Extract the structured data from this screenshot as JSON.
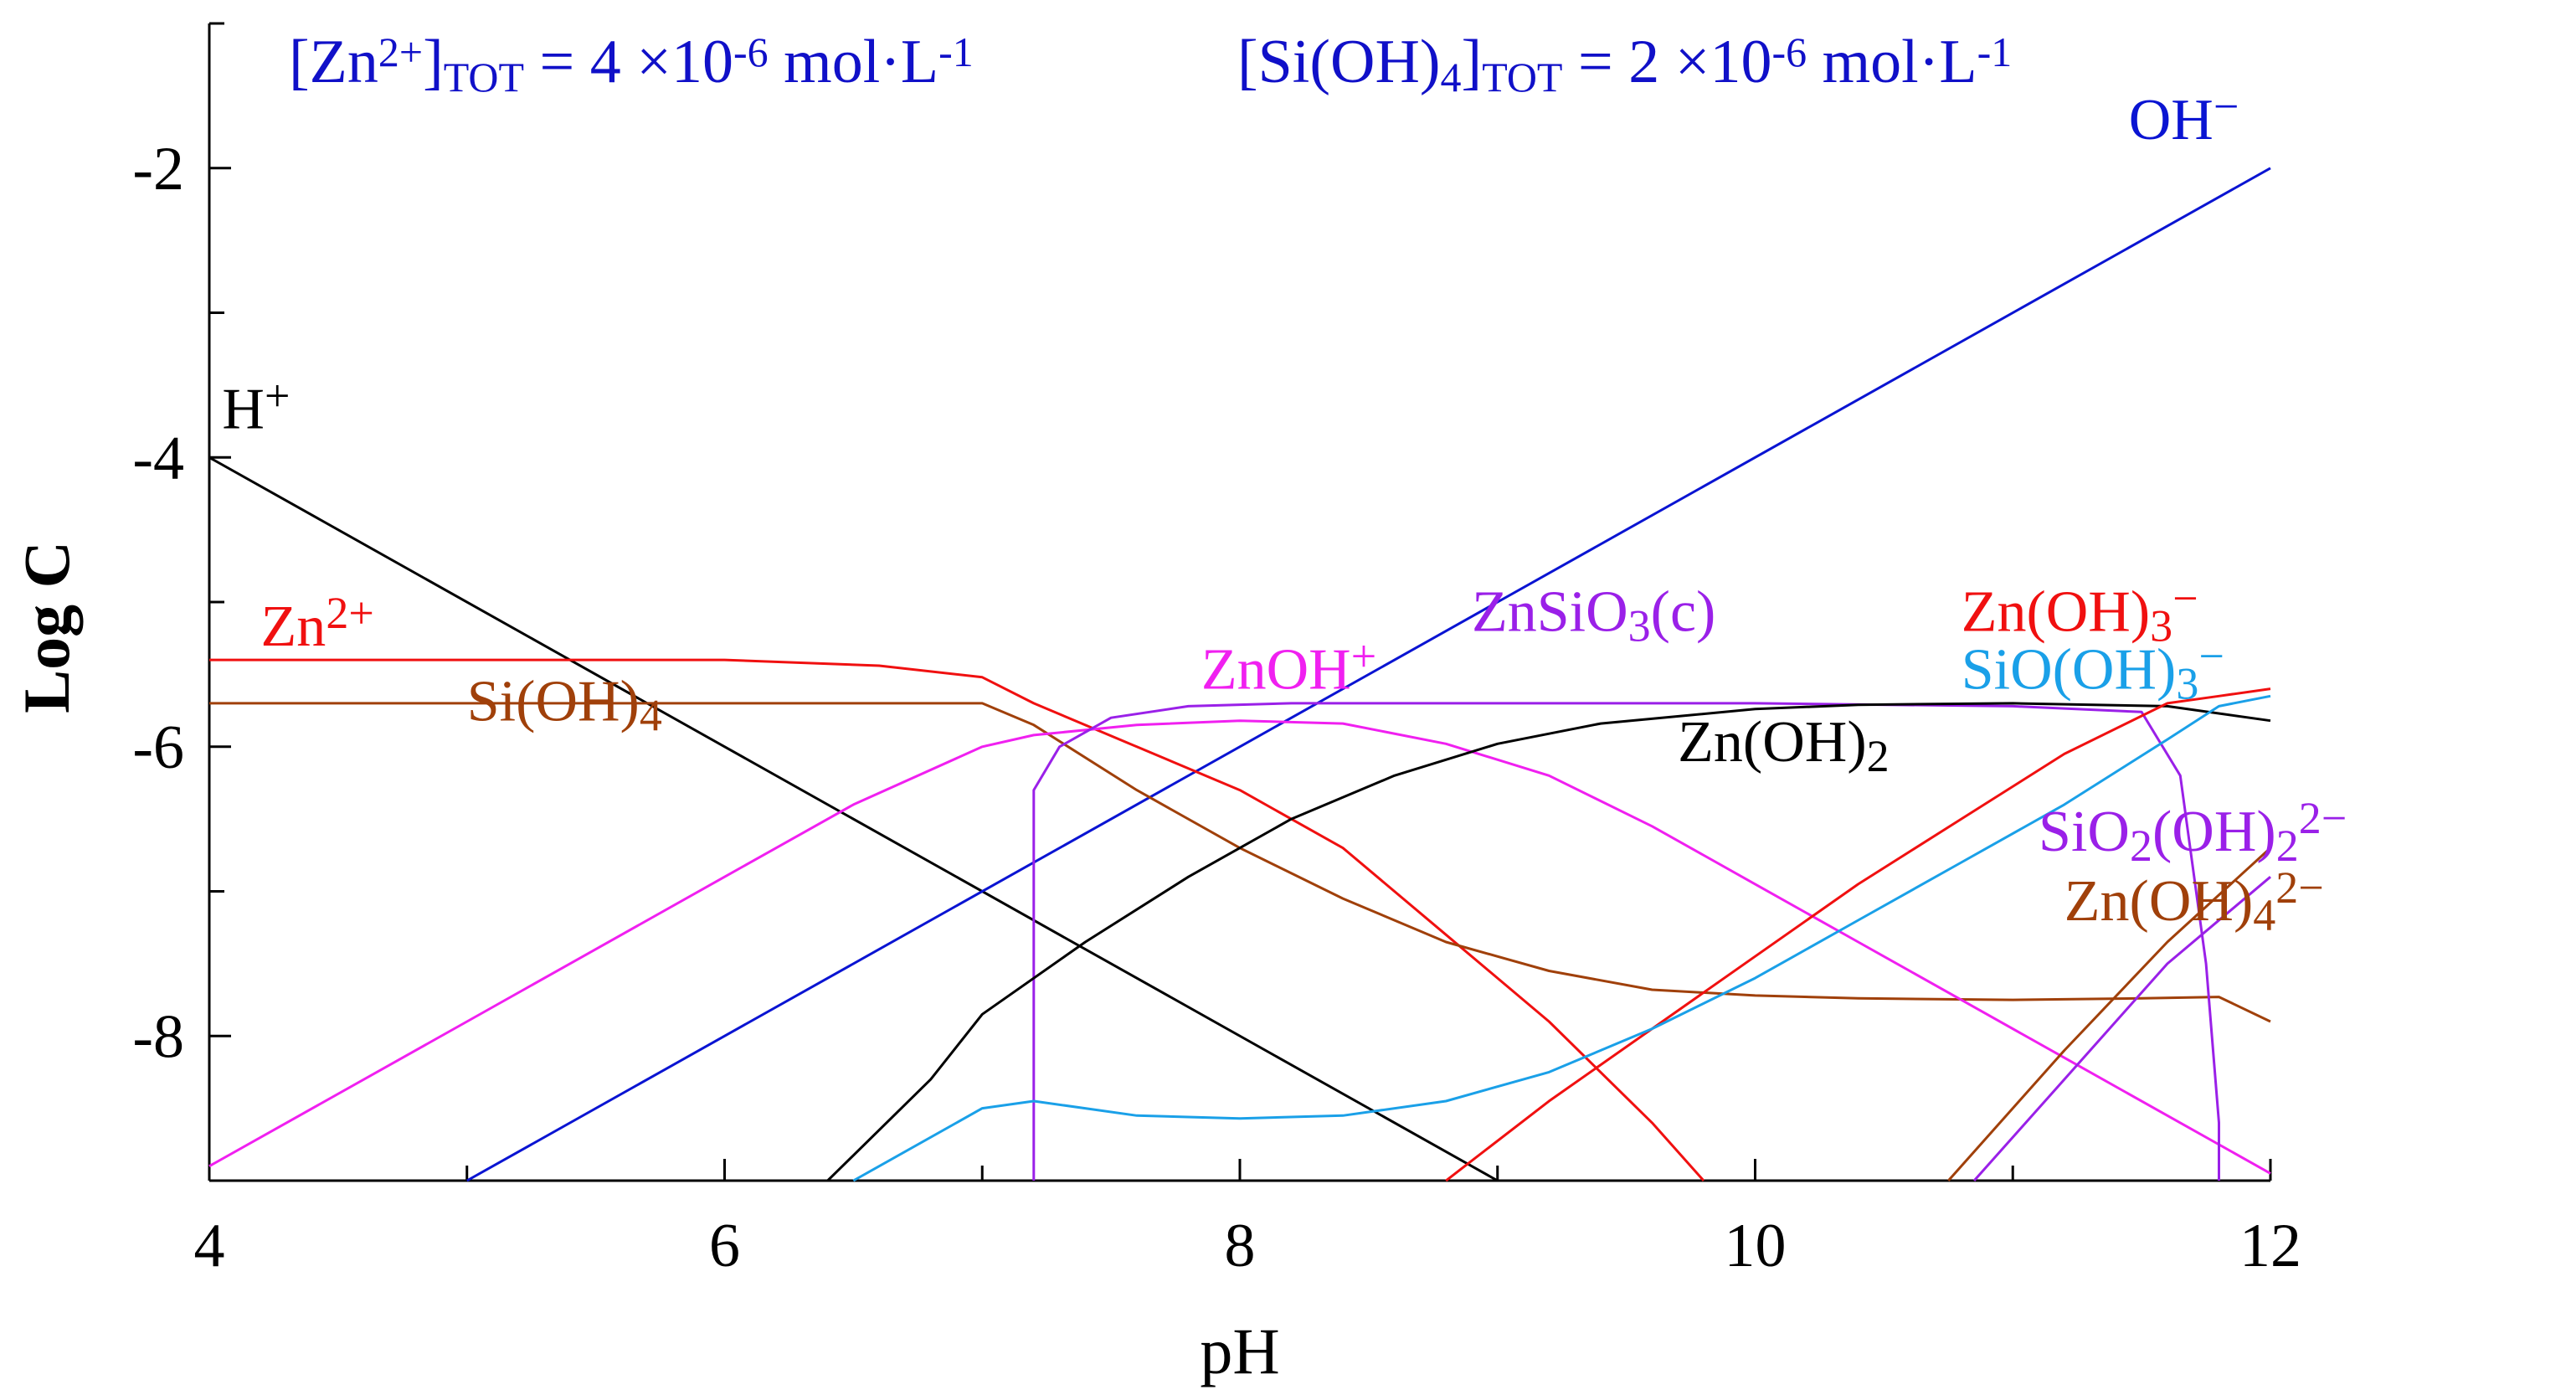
{
  "chart_data": {
    "type": "line",
    "title": "",
    "header": {
      "zn_total": {
        "a": "[Zn",
        "sup": "2+",
        "b": "]",
        "sub": "TOT",
        "c": " = 4 ×10",
        "exp": "-6",
        "unit": " mol·L",
        "uexp": "-1"
      },
      "si_total": {
        "a": "[Si(OH)",
        "sub1": "4",
        "b": "]",
        "sub": "TOT",
        "c": " = 2 ×10",
        "exp": "-6",
        "unit": " mol·L",
        "uexp": "-1"
      }
    },
    "xlabel": "pH",
    "ylabel": "Log C",
    "xlim": [
      4,
      12
    ],
    "ylim": [
      -9,
      -1
    ],
    "xticks": [
      "4",
      "6",
      "8",
      "10",
      "12"
    ],
    "yticks": [
      "-2",
      "-4",
      "-6",
      "-8"
    ],
    "colors": {
      "black": "#000000",
      "blue": "#0a14d2",
      "red": "#f01010",
      "brown": "#a0400a",
      "magenta": "#f020f0",
      "purple": "#9a20e8",
      "cyan": "#1aa0e8"
    },
    "series": [
      {
        "name": "H+",
        "color": "#000000",
        "x": [
          4,
          9
        ],
        "y": [
          -4,
          -9
        ]
      },
      {
        "name": "OH-",
        "color": "#0a14d2",
        "x": [
          5,
          12
        ],
        "y": [
          -9,
          -2
        ]
      },
      {
        "name": "Zn2+",
        "color": "#f01010",
        "x": [
          4,
          6,
          6.6,
          7,
          7.2,
          7.6,
          8,
          8.4,
          8.8,
          9.2,
          9.6,
          9.8
        ],
        "y": [
          -5.4,
          -5.4,
          -5.44,
          -5.52,
          -5.7,
          -6.0,
          -6.3,
          -6.7,
          -7.3,
          -7.9,
          -8.6,
          -9.0
        ]
      },
      {
        "name": "Si(OH)4",
        "color": "#a0400a",
        "x": [
          4,
          7,
          7.2,
          7.6,
          8,
          8.4,
          8.8,
          9.2,
          9.6,
          10,
          10.4,
          11,
          11.5,
          11.8,
          12
        ],
        "y": [
          -5.7,
          -5.7,
          -5.85,
          -6.3,
          -6.7,
          -7.05,
          -7.35,
          -7.55,
          -7.68,
          -7.72,
          -7.74,
          -7.75,
          -7.74,
          -7.73,
          -7.9
        ]
      },
      {
        "name": "ZnOH+",
        "color": "#f020f0",
        "x": [
          4,
          5,
          6,
          6.5,
          7,
          7.2,
          7.6,
          8,
          8.4,
          8.8,
          9.2,
          9.6,
          10,
          10.4,
          10.8,
          11.2,
          11.6,
          12
        ],
        "y": [
          -8.9,
          -7.9,
          -6.9,
          -6.4,
          -6.0,
          -5.92,
          -5.85,
          -5.82,
          -5.84,
          -5.98,
          -6.2,
          -6.55,
          -6.95,
          -7.35,
          -7.75,
          -8.15,
          -8.55,
          -8.95
        ]
      },
      {
        "name": "ZnSiO3(c)",
        "color": "#9a20e8",
        "x": [
          7.2,
          7.2,
          7.3,
          7.5,
          7.8,
          8.2,
          9,
          10,
          11,
          11.5,
          11.65,
          11.75,
          11.8,
          11.8
        ],
        "y": [
          -9,
          -6.3,
          -6.0,
          -5.8,
          -5.72,
          -5.7,
          -5.7,
          -5.7,
          -5.72,
          -5.76,
          -6.2,
          -7.5,
          -8.6,
          -9
        ]
      },
      {
        "name": "Zn(OH)2",
        "color": "#000000",
        "x": [
          6.4,
          6.8,
          7,
          7.4,
          7.8,
          8.2,
          8.6,
          9,
          9.4,
          10,
          10.4,
          11,
          11.6,
          12
        ],
        "y": [
          -9,
          -8.3,
          -7.85,
          -7.35,
          -6.9,
          -6.5,
          -6.2,
          -5.98,
          -5.84,
          -5.74,
          -5.71,
          -5.7,
          -5.72,
          -5.82
        ]
      },
      {
        "name": "Zn(OH)3-",
        "color": "#f01010",
        "x": [
          8.8,
          9.2,
          9.6,
          10,
          10.4,
          10.8,
          11.2,
          11.6,
          11.8,
          12
        ],
        "y": [
          -9,
          -8.45,
          -7.95,
          -7.45,
          -6.95,
          -6.5,
          -6.05,
          -5.7,
          -5.65,
          -5.6
        ]
      },
      {
        "name": "SiO(OH)3-",
        "color": "#1aa0e8",
        "x": [
          6.5,
          7,
          7.2,
          7.6,
          8,
          8.4,
          8.8,
          9.2,
          9.6,
          10,
          10.4,
          10.8,
          11.2,
          11.6,
          11.8,
          12
        ],
        "y": [
          -9,
          -8.5,
          -8.45,
          -8.55,
          -8.57,
          -8.55,
          -8.45,
          -8.25,
          -7.95,
          -7.6,
          -7.2,
          -6.8,
          -6.4,
          -5.95,
          -5.72,
          -5.65
        ]
      },
      {
        "name": "SiO2(OH)22-",
        "color": "#9a20e8",
        "x": [
          10.85,
          11.2,
          11.6,
          12
        ],
        "y": [
          -9,
          -8.3,
          -7.5,
          -6.9
        ]
      },
      {
        "name": "Zn(OH)42-",
        "color": "#a0400a",
        "x": [
          10.75,
          11.2,
          11.6,
          12
        ],
        "y": [
          -9,
          -8.1,
          -7.35,
          -6.7
        ]
      }
    ],
    "species_labels": [
      {
        "name": "H+",
        "base": "H",
        "sup": "+",
        "sub": "",
        "tail": "",
        "color": "#000000",
        "x": 4.05,
        "y": -3.8
      },
      {
        "name": "OH-",
        "base": "OH",
        "sup": "−",
        "sub": "",
        "tail": "",
        "color": "#0a14d2",
        "x": 11.45,
        "y": -1.8
      },
      {
        "name": "Zn2+",
        "base": "Zn",
        "sup": "2+",
        "sub": "",
        "tail": "",
        "color": "#f01010",
        "x": 4.2,
        "y": -5.3
      },
      {
        "name": "Si(OH)4",
        "base": "Si(OH)",
        "sup": "",
        "sub": "4",
        "tail": "",
        "color": "#a0400a",
        "x": 5.0,
        "y": -5.82
      },
      {
        "name": "ZnOH+",
        "base": "ZnOH",
        "sup": "+",
        "sub": "",
        "tail": "",
        "color": "#f020f0",
        "x": 7.85,
        "y": -5.6
      },
      {
        "name": "ZnSiO3(c)",
        "base": "ZnSiO",
        "sup": "",
        "sub": "3",
        "tail": "(c)",
        "color": "#9a20e8",
        "x": 8.9,
        "y": -5.2
      },
      {
        "name": "Zn(OH)3-",
        "base": "Zn(OH)",
        "sup": "−",
        "sub": "3",
        "tail": "",
        "color": "#f01010",
        "x": 10.8,
        "y": -5.2
      },
      {
        "name": "SiO(OH)3-",
        "base": "SiO(OH)",
        "sup": "−",
        "sub": "3",
        "tail": "",
        "color": "#1aa0e8",
        "x": 10.8,
        "y": -5.6
      },
      {
        "name": "Zn(OH)2",
        "base": "Zn(OH)",
        "sup": "",
        "sub": "2",
        "tail": "",
        "color": "#000000",
        "x": 9.7,
        "y": -6.1
      },
      {
        "name": "SiO2(OH)22-",
        "base": "SiO",
        "sup": "",
        "sub": "2",
        "tail": "(OH)",
        "sub2": "2",
        "sup2": "2−",
        "color": "#9a20e8",
        "x": 11.1,
        "y": -6.72
      },
      {
        "name": "Zn(OH)42-",
        "base": "Zn(OH)",
        "sup": "2−",
        "sub": "4",
        "tail": "",
        "color": "#a0400a",
        "x": 11.2,
        "y": -7.2
      }
    ]
  }
}
